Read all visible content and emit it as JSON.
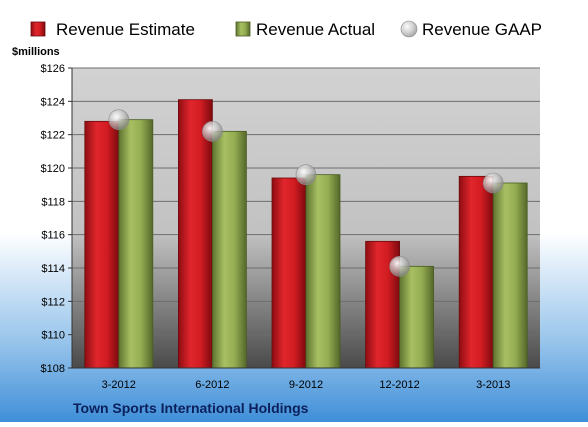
{
  "chart_data": {
    "type": "bar",
    "title": "Town Sports International Holdings",
    "ylabel": "$millions",
    "xlabel": "",
    "categories": [
      "3-2012",
      "6-2012",
      "9-2012",
      "12-2012",
      "3-2013"
    ],
    "series": [
      {
        "name": "Revenue Estimate",
        "kind": "bar",
        "color": "#c0151b",
        "values": [
          122.8,
          124.1,
          119.4,
          115.6,
          119.5
        ]
      },
      {
        "name": "Revenue Actual",
        "kind": "bar",
        "color": "#8fa94c",
        "values": [
          122.9,
          122.2,
          119.6,
          114.1,
          119.1
        ]
      },
      {
        "name": "Revenue GAAP",
        "kind": "marker",
        "color": "#b8b8b8",
        "values": [
          122.9,
          122.2,
          119.6,
          114.1,
          119.1
        ]
      }
    ],
    "ylim": [
      108,
      126
    ],
    "yticks": [
      "$108",
      "$110",
      "$112",
      "$114",
      "$116",
      "$118",
      "$120",
      "$122",
      "$124",
      "$126"
    ],
    "ytick_values": [
      108,
      110,
      112,
      114,
      116,
      118,
      120,
      122,
      124,
      126
    ],
    "grid": true,
    "legend_position": "top"
  }
}
